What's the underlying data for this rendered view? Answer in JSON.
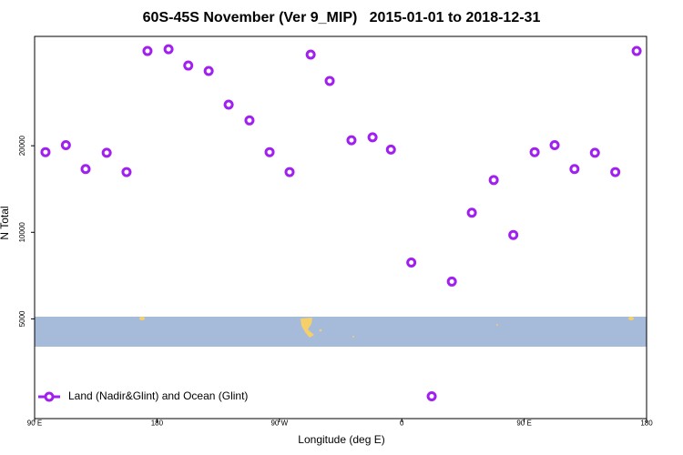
{
  "chart_data": {
    "type": "scatter",
    "title": "60S-45S November (Ver 9_MIP)   2015-01-01 to 2018-12-31",
    "xlabel": "Longitude (deg E)",
    "ylabel": "N Total",
    "log_y": true,
    "xlim": [
      90,
      540
    ],
    "ylim": [
      2250,
      48000
    ],
    "xticks": [
      {
        "value": 90,
        "label": "90 E"
      },
      180,
      {
        "value": 270,
        "label": "90 W"
      },
      {
        "value": 360,
        "label": "0"
      },
      {
        "value": 450,
        "label": "90 E"
      },
      {
        "value": 540,
        "label": "180"
      }
    ],
    "yticks": [
      5000,
      10000,
      20000
    ],
    "legend": "lower left",
    "series": [
      {
        "name": "Land (Nadir&Glint) and Ocean (Glint)",
        "color": "#a020f0",
        "x": [
          98,
          113,
          127.5,
          143,
          157.6,
          173,
          188.5,
          203,
          218,
          232.7,
          248,
          262.8,
          277.5,
          293,
          307,
          323,
          338.5,
          352,
          367,
          382,
          396.8,
          411.5,
          427.6,
          442,
          457.7,
          472.4,
          487,
          502,
          517,
          532.7
        ],
        "values": [
          19000,
          20100,
          16600,
          18900,
          16200,
          42700,
          43300,
          38000,
          36400,
          27800,
          24500,
          19000,
          16200,
          41500,
          33600,
          20900,
          21400,
          19400,
          7850,
          2690,
          6740,
          11700,
          15200,
          9790,
          19000,
          20100,
          16600,
          18900,
          16200,
          42700
        ]
      }
    ]
  }
}
